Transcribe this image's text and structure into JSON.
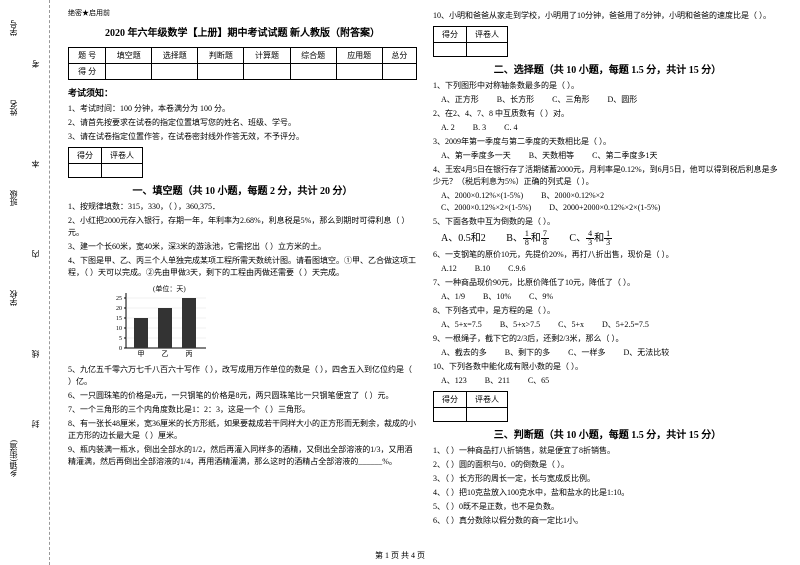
{
  "gutter": {
    "labels": [
      "学号",
      "姓名",
      "班级",
      "学校",
      "乡镇(街道)"
    ],
    "texts": [
      "考",
      "本",
      "内",
      "线",
      "封"
    ]
  },
  "header": {
    "secret": "绝密★启用前",
    "title": "2020 年六年级数学【上册】期中考试试题 新人教版（附答案）"
  },
  "scoreTable": {
    "r1": [
      "题 号",
      "填空题",
      "选择题",
      "判断题",
      "计算题",
      "综合题",
      "应用题",
      "总分"
    ],
    "r2": [
      "得 分",
      "",
      "",
      "",
      "",
      "",
      "",
      ""
    ]
  },
  "notice": {
    "title": "考试须知：",
    "items": [
      "1、考试时间：100 分钟，本卷满分为 100 分。",
      "2、请首先按要求在试卷的指定位置填写您的姓名、班级、学号。",
      "3、请在试卷指定位置作答，在试卷密封线外作答无效，不予评分。"
    ]
  },
  "gradeBox": {
    "c1": "得分",
    "c2": "评卷人"
  },
  "sec1": {
    "title": "一、填空题（共 10 小题，每题 2 分，共计 20 分）",
    "q1": "1、按规律填数：315，330，（ ），360,375．",
    "q2": "2、小红把2000元存入银行，存期一年，年利率为2.68%，利息税是5%，那么到期时可得利息（ ）元。",
    "q3": "3、建一个长60米，宽40米，深3米的游泳池，它需挖出（ ）立方米的土。",
    "q4": "4、下图是甲、乙、丙三个人单独完成某项工程所需天数统计图。请看图填空。①甲、乙合做这项工程，（ ）天可以完成。②先由甲做3天，剩下的工程由丙做还需要（ ）天完成。",
    "q5": "5、九亿五千零六万七千八百六十写作（ ），改写成用万作单位的数是（ ），四舍五入到亿位约是（ ）亿。",
    "q6": "6、一只圆珠笔的价格是a元，一只钢笔的价格是8元，两只圆珠笔比一只钢笔便宜了（ ）元。",
    "q7": "7、一个三角形的三个内角度数比是1：2：3，这是一个（ ）三角形。",
    "q8": "8、有一张长48厘米，宽36厘米的长方形纸，如果要裁成若干同样大小的正方形而无剩余，裁成的小正方形的边长最大是（ ）厘米。",
    "q9": "9、瓶内装满一瓶水，倒出全部水的1/2，然后再灌入同样多的酒精，又倒出全部溶液的1/3，又用酒精灌满，然后再倒出全部溶液的1/4，再用酒精灌满，那么这时的酒精占全部溶液的______%。"
  },
  "chart": {
    "ylabel": "(单位：天)",
    "yticks": [
      "25",
      "20",
      "15",
      "10",
      "5",
      "0"
    ],
    "cats": [
      "甲",
      "乙",
      "丙"
    ],
    "vals": [
      15,
      20,
      25
    ],
    "bar_color": "#333333",
    "grid_color": "#000000",
    "bg": "#ffffff",
    "height": 60,
    "width": 110,
    "ymax": 25
  },
  "sec1r": {
    "q10": "10、小明和爸爸从家走到学校，小明用了10分钟，爸爸用了8分钟，小明和爸爸的速度比是（ ）。"
  },
  "sec2": {
    "title": "二、选择题（共 10 小题，每题 1.5 分，共计 15 分）",
    "q1": "1、下列图形中对称轴条数最多的是（ ）。",
    "q1o": [
      "A、正方形",
      "B、长方形",
      "C、三角形",
      "D、圆形"
    ],
    "q2": "2、在2、4、7、8 中互质数有（ ）对。",
    "q2o": [
      "A. 2",
      "B. 3",
      "C. 4"
    ],
    "q3": "3、2009年第一季度与第二季度的天数相比是（ ）。",
    "q3o": [
      "A、第一季度多一天",
      "B、天数相等",
      "C、第二季度多1天"
    ],
    "q4": "4、王宏4月5日在银行存了活期储蓄2000元，月利率是0.12%，到6月5日，他可以得到税后利息是多少元？（税后利息为5%）正确的列式是（ ）。",
    "q4o": [
      "A、2000×0.12%×(1-5%)",
      "B、2000×0.12%×2",
      "C、2000×0.12%×2×(1-5%)",
      "D、2000+2000×0.12%×2×(1-5%)"
    ],
    "q5": "5、下面各数中互为倒数的是（ ）。",
    "q5o_a_pre": "A、0.5和2",
    "q5o_b_pre": "B、",
    "q5o_b_f1n": "1",
    "q5o_b_f1d": "8",
    "q5o_b_mid": "和",
    "q5o_b_f2n": "7",
    "q5o_b_f2d": "8",
    "q5o_c_pre": "C、",
    "q5o_c_f1n": "4",
    "q5o_c_f1d": "3",
    "q5o_c_mid": "和",
    "q5o_c_f2n": "1",
    "q5o_c_f2d": "3",
    "q6": "6、一支钢笔的原价10元，先提价20%，再打八折出售，现价是（ ）。",
    "q6o": [
      "A.12",
      "B.10",
      "C.9.6"
    ],
    "q7": "7、一种商品现价90元，比原价降低了10元，降低了（ ）。",
    "q7o": [
      "A、1/9",
      "B、10%",
      "C、9%"
    ],
    "q8": "8、下列各式中，是方程的是（ ）。",
    "q8o": [
      "A、5+x=7.5",
      "B、5+x>7.5",
      "C、5+x",
      "D、5+2.5=7.5"
    ],
    "q9": "9、一根绳子，截下它的2/3后，还剩2/3米，那么（ ）。",
    "q9o": [
      "A、截去的多",
      "B、剩下的多",
      "C、一样多",
      "D、无法比较"
    ],
    "q10": "10、下列各数中能化成有限小数的是（ ）。",
    "q10o": [
      "A、123",
      "B、211",
      "C、65"
    ]
  },
  "sec3": {
    "title": "三、判断题（共 10 小题，每题 1.5 分，共计 15 分）",
    "q1": "1、（ ）一种商品打八折销售，就是便宜了8折销售。",
    "q2": "2、（ ）圆的面积与0．0的倒数是（ ）。",
    "q3": "3、（ ）长方形的周长一定，长与宽成反比例。",
    "q4": "4、（ ）把10克盐放入100克水中，盐和盐水的比是1:10。",
    "q5": "5、（ ）0既不是正数，也不是负数。",
    "q6": "6、（ ）真分数除以假分数的商一定比1小。"
  },
  "footer": "第 1 页 共 4 页"
}
